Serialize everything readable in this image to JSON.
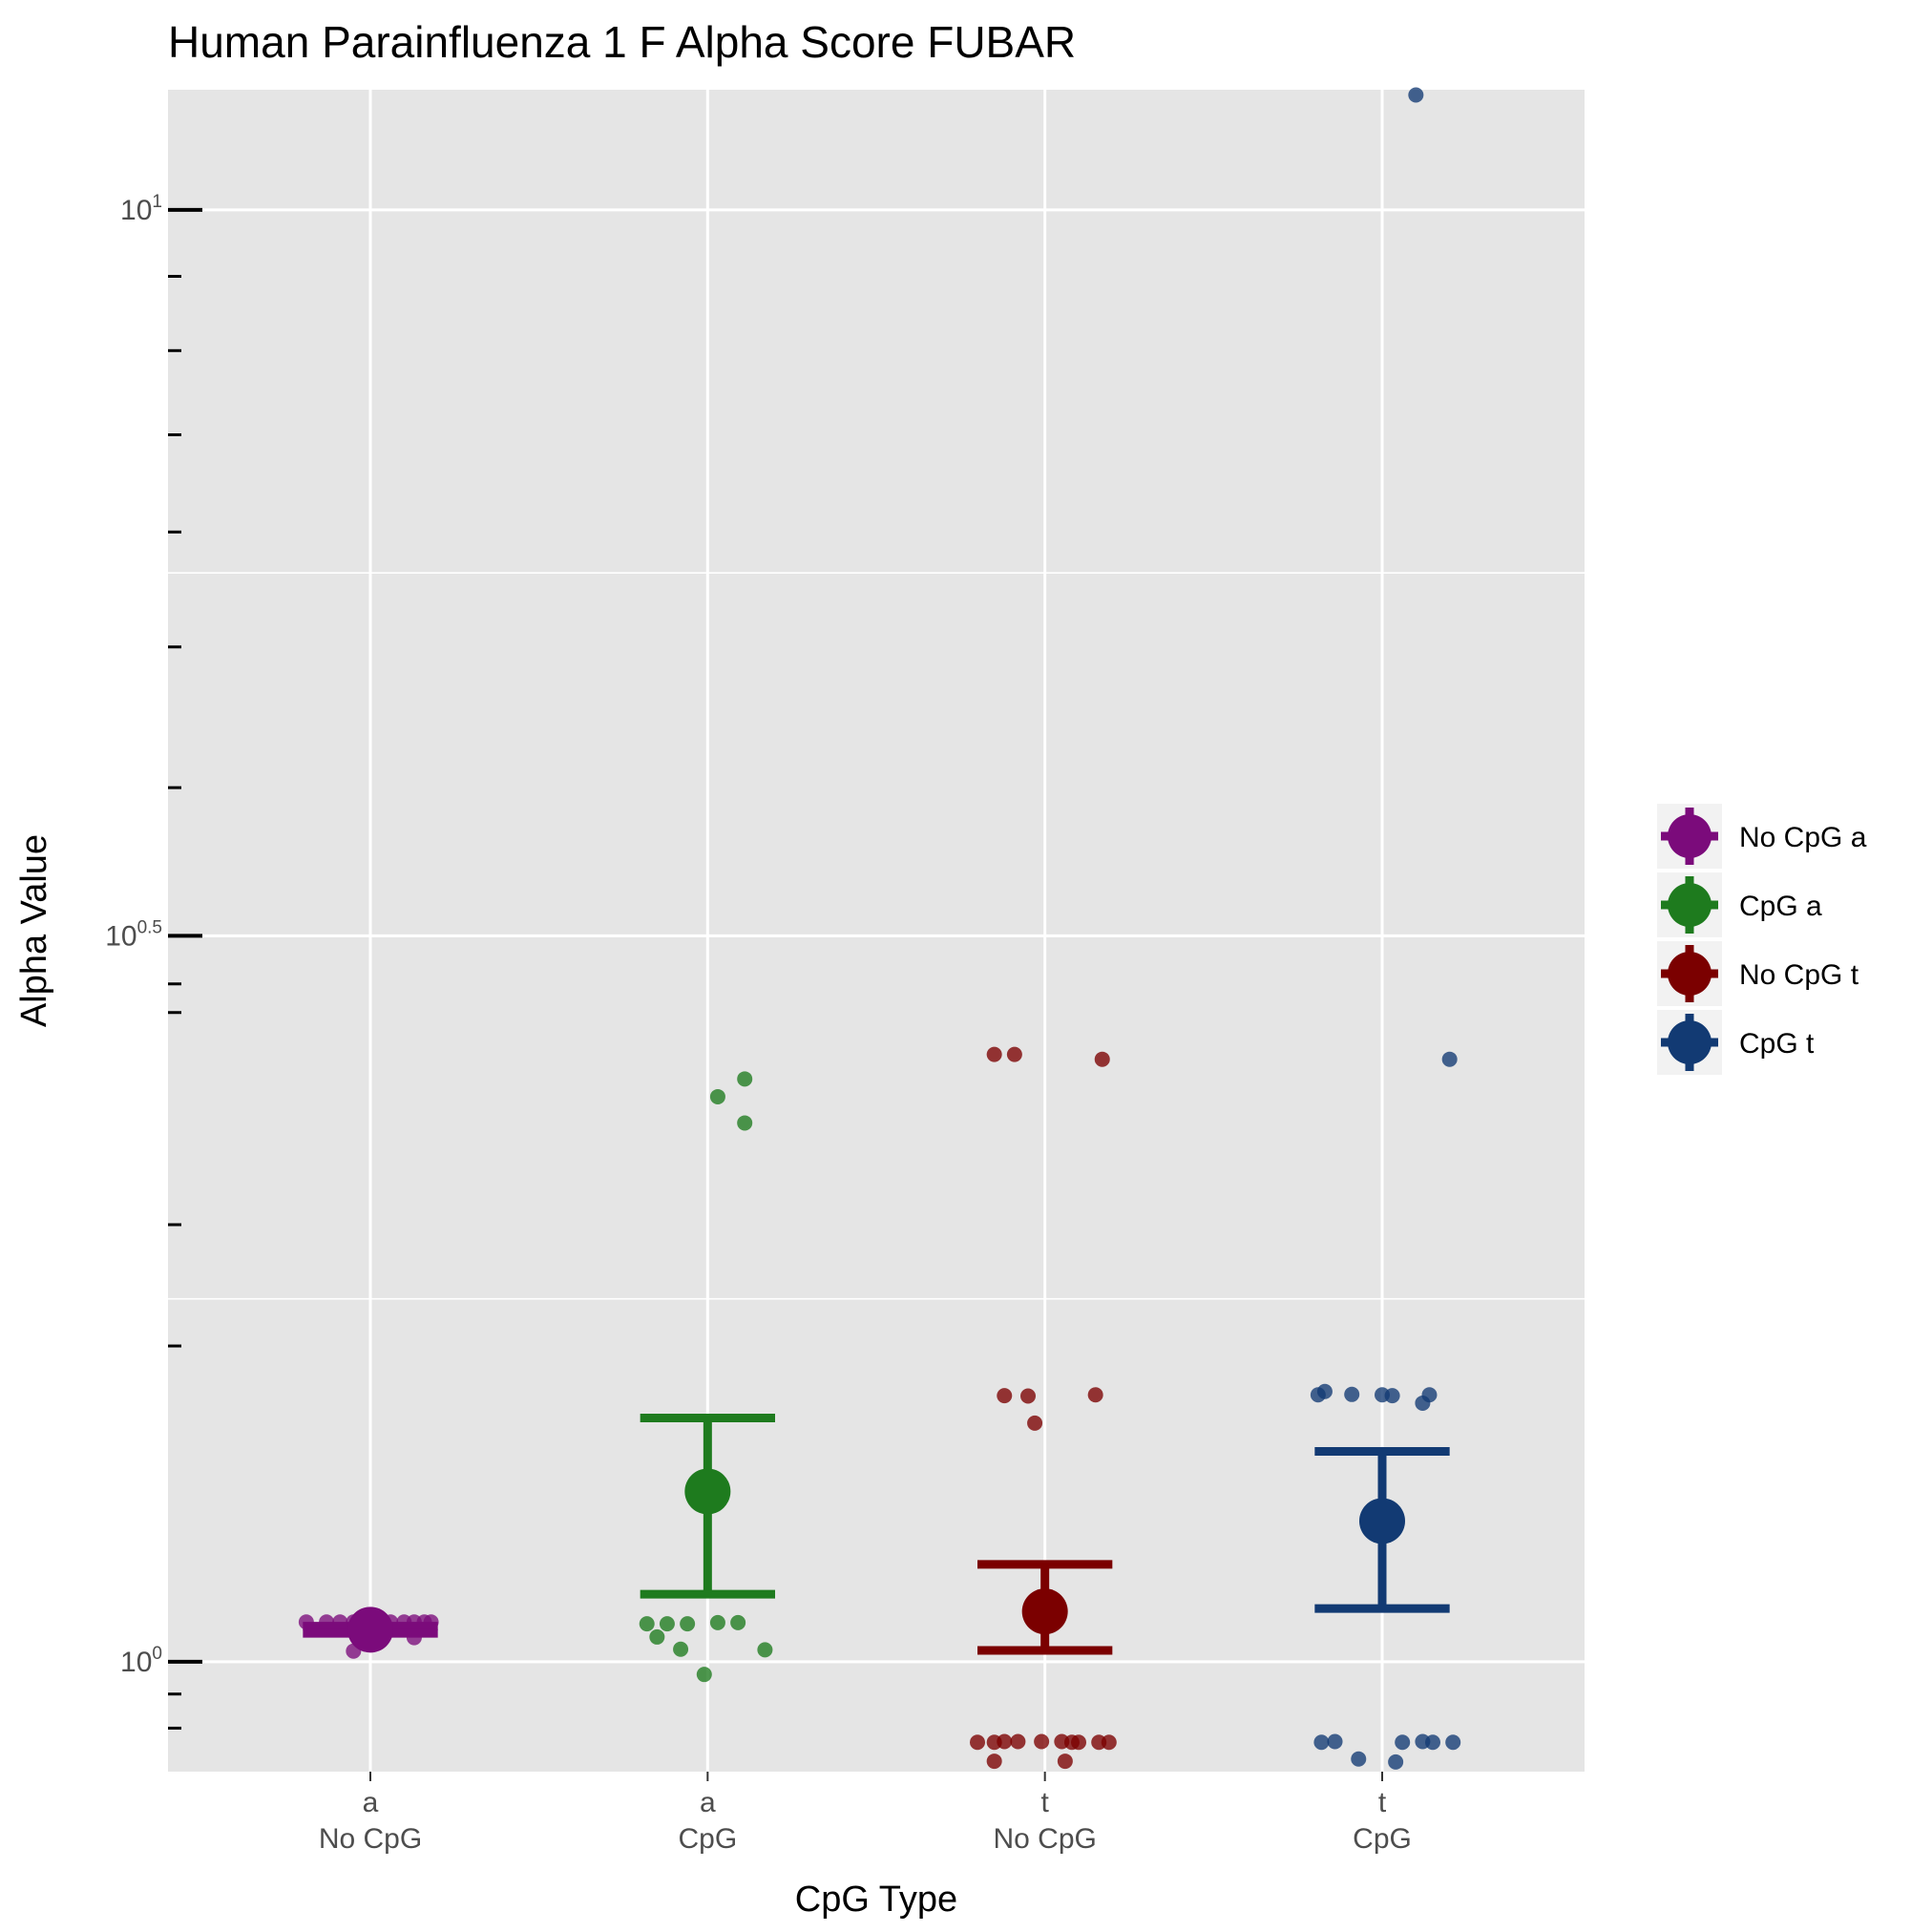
{
  "chart_data": {
    "type": "scatter",
    "title": "Human Parainfluenza 1 F Alpha Score FUBAR",
    "xlabel": "CpG Type",
    "ylabel": "Alpha Value",
    "y_scale": "log10",
    "ylim": [
      0.84,
      12.1
    ],
    "grid": true,
    "legend_position": "right",
    "y_major_ticks": [
      {
        "value": 1,
        "base": "10",
        "exp": "0"
      },
      {
        "value": 3.1623,
        "base": "10",
        "exp": "0.5"
      },
      {
        "value": 10,
        "base": "10",
        "exp": "1"
      }
    ],
    "y_minor_ticks": [
      0.9,
      0.95,
      1.65,
      2.0,
      2.8,
      2.93,
      4.0,
      5.0,
      6.0,
      7.0,
      8.0,
      9.0
    ],
    "y_minor_grid": [
      1.778,
      5.623
    ],
    "categories": [
      {
        "top": "a",
        "bottom": "No CpG"
      },
      {
        "top": "a",
        "bottom": "CpG"
      },
      {
        "top": "t",
        "bottom": "No CpG"
      },
      {
        "top": "t",
        "bottom": "CpG"
      }
    ],
    "series": [
      {
        "name": "No CpG a",
        "color": "#7b0b7b",
        "category": 0,
        "mean": 1.052,
        "ci_low": 1.046,
        "ci_high": 1.058,
        "points": [
          {
            "jitter": -0.19,
            "y": 1.065
          },
          {
            "jitter": -0.13,
            "y": 1.065
          },
          {
            "jitter": -0.09,
            "y": 1.065
          },
          {
            "jitter": -0.05,
            "y": 1.065
          },
          {
            "jitter": -0.02,
            "y": 1.065
          },
          {
            "jitter": 0.02,
            "y": 1.065
          },
          {
            "jitter": 0.06,
            "y": 1.065
          },
          {
            "jitter": 0.1,
            "y": 1.065
          },
          {
            "jitter": 0.13,
            "y": 1.065
          },
          {
            "jitter": 0.16,
            "y": 1.065
          },
          {
            "jitter": 0.18,
            "y": 1.065
          },
          {
            "jitter": -0.05,
            "y": 1.017
          },
          {
            "jitter": 0.13,
            "y": 1.039
          }
        ]
      },
      {
        "name": "CpG a",
        "color": "#1e7b1e",
        "category": 1,
        "mean": 1.31,
        "ci_low": 1.113,
        "ci_high": 1.472,
        "points": [
          {
            "jitter": 0.03,
            "y": 2.45
          },
          {
            "jitter": 0.11,
            "y": 2.52
          },
          {
            "jitter": 0.11,
            "y": 2.35
          },
          {
            "jitter": -0.18,
            "y": 1.062
          },
          {
            "jitter": -0.12,
            "y": 1.062
          },
          {
            "jitter": -0.06,
            "y": 1.062
          },
          {
            "jitter": 0.03,
            "y": 1.064
          },
          {
            "jitter": 0.09,
            "y": 1.064
          },
          {
            "jitter": -0.15,
            "y": 1.04
          },
          {
            "jitter": -0.08,
            "y": 1.02
          },
          {
            "jitter": 0.17,
            "y": 1.019
          },
          {
            "jitter": -0.01,
            "y": 0.98
          }
        ]
      },
      {
        "name": "No CpG t",
        "color": "#7b0000",
        "category": 2,
        "mean": 1.083,
        "ci_low": 1.018,
        "ci_high": 1.167,
        "points": [
          {
            "jitter": -0.15,
            "y": 2.62
          },
          {
            "jitter": -0.09,
            "y": 2.62
          },
          {
            "jitter": 0.17,
            "y": 2.6
          },
          {
            "jitter": -0.12,
            "y": 1.525
          },
          {
            "jitter": -0.05,
            "y": 1.524
          },
          {
            "jitter": 0.15,
            "y": 1.527
          },
          {
            "jitter": -0.03,
            "y": 1.46
          },
          {
            "jitter": -0.2,
            "y": 0.88
          },
          {
            "jitter": -0.15,
            "y": 0.88
          },
          {
            "jitter": -0.12,
            "y": 0.881
          },
          {
            "jitter": -0.08,
            "y": 0.881
          },
          {
            "jitter": -0.01,
            "y": 0.881
          },
          {
            "jitter": 0.05,
            "y": 0.881
          },
          {
            "jitter": 0.08,
            "y": 0.88
          },
          {
            "jitter": 0.1,
            "y": 0.88
          },
          {
            "jitter": 0.16,
            "y": 0.88
          },
          {
            "jitter": 0.19,
            "y": 0.88
          },
          {
            "jitter": -0.15,
            "y": 0.854
          },
          {
            "jitter": 0.06,
            "y": 0.854
          }
        ]
      },
      {
        "name": "CpG t",
        "color": "#123a73",
        "category": 3,
        "mean": 1.25,
        "ci_low": 1.088,
        "ci_high": 1.396,
        "points": [
          {
            "jitter": 0.1,
            "y": 12.0
          },
          {
            "jitter": 0.2,
            "y": 2.6
          },
          {
            "jitter": -0.19,
            "y": 1.527
          },
          {
            "jitter": -0.17,
            "y": 1.535
          },
          {
            "jitter": -0.09,
            "y": 1.528
          },
          {
            "jitter": 0.0,
            "y": 1.527
          },
          {
            "jitter": 0.03,
            "y": 1.525
          },
          {
            "jitter": 0.12,
            "y": 1.507
          },
          {
            "jitter": 0.14,
            "y": 1.527
          },
          {
            "jitter": -0.18,
            "y": 0.88
          },
          {
            "jitter": -0.14,
            "y": 0.881
          },
          {
            "jitter": 0.06,
            "y": 0.88
          },
          {
            "jitter": 0.12,
            "y": 0.881
          },
          {
            "jitter": 0.15,
            "y": 0.88
          },
          {
            "jitter": 0.21,
            "y": 0.88
          },
          {
            "jitter": -0.07,
            "y": 0.857
          },
          {
            "jitter": 0.04,
            "y": 0.853
          }
        ]
      }
    ]
  }
}
